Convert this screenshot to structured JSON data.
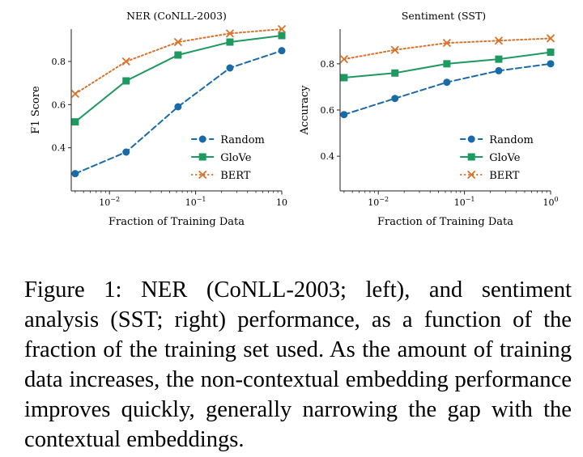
{
  "chart_data": [
    {
      "type": "line",
      "title": "NER (CoNLL-2003)",
      "xlabel": "Fraction of Training Data",
      "ylabel": "F1 Score",
      "xscale": "log",
      "xlim": [
        0.0036,
        1.0
      ],
      "ylim": [
        0.2,
        0.95
      ],
      "xticks": [
        {
          "value": 0.01,
          "base": "10",
          "exp": "−2"
        },
        {
          "value": 0.1,
          "base": "10",
          "exp": "−1"
        },
        {
          "value": 1.0,
          "base": "10",
          "exp": ""
        }
      ],
      "yticks": [
        {
          "value": 0.4,
          "label": "0.4"
        },
        {
          "value": 0.6,
          "label": "0.6"
        },
        {
          "value": 0.8,
          "label": "0.8"
        }
      ],
      "x": [
        0.004,
        0.0156,
        0.0625,
        0.25,
        1.0
      ],
      "series": [
        {
          "name": "Random",
          "values": [
            0.28,
            0.38,
            0.59,
            0.77,
            0.85
          ]
        },
        {
          "name": "GloVe",
          "values": [
            0.52,
            0.71,
            0.83,
            0.89,
            0.92
          ]
        },
        {
          "name": "BERT",
          "values": [
            0.65,
            0.8,
            0.89,
            0.93,
            0.95
          ]
        }
      ],
      "legend": "bottom-right"
    },
    {
      "type": "line",
      "title": "Sentiment (SST)",
      "xlabel": "Fraction of Training Data",
      "ylabel": "Accuracy",
      "xscale": "log",
      "xlim": [
        0.0036,
        1.0
      ],
      "ylim": [
        0.25,
        0.95
      ],
      "xticks": [
        {
          "value": 0.01,
          "base": "10",
          "exp": "−2"
        },
        {
          "value": 0.1,
          "base": "10",
          "exp": "−1"
        },
        {
          "value": 1.0,
          "base": "10",
          "exp": "0"
        }
      ],
      "yticks": [
        {
          "value": 0.4,
          "label": "0.4"
        },
        {
          "value": 0.6,
          "label": "0.6"
        },
        {
          "value": 0.8,
          "label": "0.8"
        }
      ],
      "x": [
        0.004,
        0.0156,
        0.0625,
        0.25,
        1.0
      ],
      "series": [
        {
          "name": "Random",
          "values": [
            0.58,
            0.65,
            0.72,
            0.77,
            0.8
          ]
        },
        {
          "name": "GloVe",
          "values": [
            0.74,
            0.76,
            0.8,
            0.82,
            0.85
          ]
        },
        {
          "name": "BERT",
          "values": [
            0.82,
            0.86,
            0.89,
            0.9,
            0.91
          ]
        }
      ],
      "legend": "bottom-right"
    }
  ],
  "styles": [
    {
      "color": "#1a6aa8",
      "dash": "dashed",
      "marker": "circle"
    },
    {
      "color": "#1e9960",
      "dash": "solid",
      "marker": "square"
    },
    {
      "color": "#d9722b",
      "dash": "dotted",
      "marker": "x"
    }
  ],
  "caption": {
    "text": "Figure 1: NER (CoNLL-2003; left), and sentiment analysis (SST; right) performance, as a function of the fraction of the training set used. As the amount of train­ing data increases, the non-contextual embedding per­formance improves quickly, generally narrowing the gap with the contextual embeddings."
  }
}
